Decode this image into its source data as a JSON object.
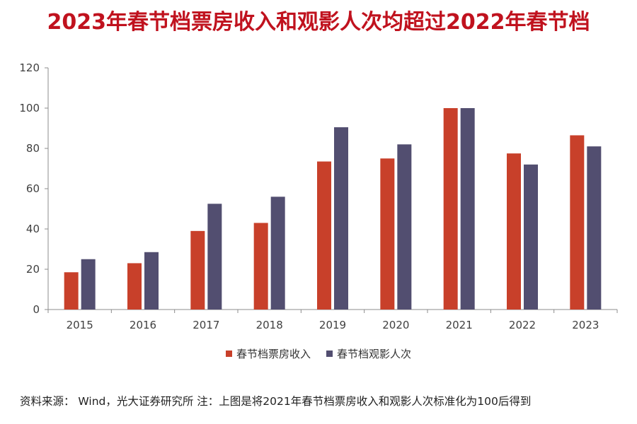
{
  "title": "2023年春节档票房收入和观影人次均超过2022年春节档",
  "source_note": "资料来源： Wind，光大证券研究所 注：上图是将2021年春节档票房收入和观影人次标准化为100后得到",
  "chart_data": {
    "type": "bar",
    "categories": [
      "2015",
      "2016",
      "2017",
      "2018",
      "2019",
      "2020",
      "2021",
      "2022",
      "2023"
    ],
    "series": [
      {
        "name": "春节档票房收入",
        "color": "#c8402a",
        "values": [
          18.5,
          23,
          39,
          43,
          73.5,
          75,
          100,
          77.5,
          86.5
        ]
      },
      {
        "name": "春节档观影人次",
        "color": "#524e70",
        "values": [
          25,
          28.5,
          52.5,
          56,
          90.5,
          82,
          100,
          72,
          81
        ]
      }
    ],
    "ylim": [
      0,
      120
    ],
    "yticks": [
      0,
      20,
      40,
      60,
      80,
      100,
      120
    ],
    "grid": false,
    "legend_position": "bottom"
  }
}
